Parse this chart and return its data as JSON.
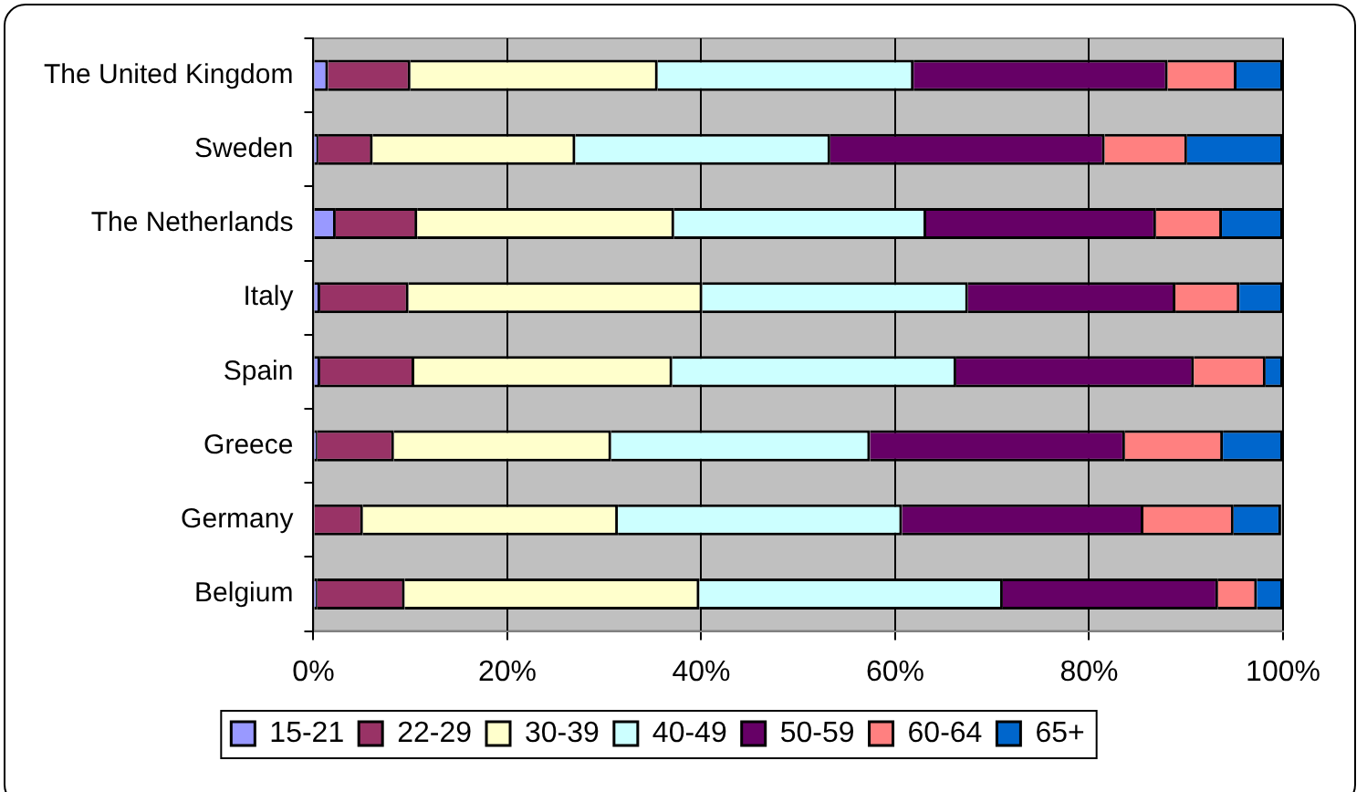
{
  "chart_data": {
    "type": "bar",
    "orientation": "horizontal",
    "stacked": true,
    "categories": [
      "The United Kingdom",
      "Sweden",
      "The Netherlands",
      "Italy",
      "Spain",
      "Greece",
      "Germany",
      "Belgium"
    ],
    "series": [
      {
        "name": "15-21",
        "color": "#9999ff",
        "values": [
          1.5,
          0.5,
          2.3,
          0.7,
          0.7,
          0.4,
          null,
          0.4
        ]
      },
      {
        "name": "22-29",
        "color": "#993366",
        "values": [
          8.5,
          5.6,
          8.4,
          9.1,
          9.7,
          7.9,
          5.1,
          9.0
        ]
      },
      {
        "name": "30-39",
        "color": "#ffffcc",
        "values": [
          25.5,
          20.9,
          26.5,
          30.3,
          26.6,
          22.4,
          26.3,
          30.4
        ]
      },
      {
        "name": "40-49",
        "color": "#ccffff",
        "values": [
          26.4,
          26.3,
          26.0,
          27.4,
          29.3,
          26.7,
          29.3,
          31.3
        ]
      },
      {
        "name": "50-59",
        "color": "#660066",
        "values": [
          26.2,
          28.3,
          23.7,
          21.4,
          24.5,
          26.3,
          24.9,
          22.2
        ]
      },
      {
        "name": "60-64",
        "color": "#ff8080",
        "values": [
          7.1,
          8.5,
          6.8,
          6.6,
          7.4,
          10.1,
          9.3,
          4.0
        ]
      },
      {
        "name": "65+",
        "color": "#0066cc",
        "values": [
          4.8,
          9.9,
          6.3,
          4.5,
          1.8,
          6.2,
          4.9,
          2.7
        ]
      }
    ],
    "xlim": [
      0,
      100
    ],
    "xticks": [
      {
        "value": 0,
        "label": "0%"
      },
      {
        "value": 20,
        "label": "20%"
      },
      {
        "value": 40,
        "label": "40%"
      },
      {
        "value": 60,
        "label": "60%"
      },
      {
        "value": 80,
        "label": "80%"
      },
      {
        "value": 100,
        "label": "100%"
      }
    ],
    "grid": "x",
    "legend": "bottom"
  }
}
